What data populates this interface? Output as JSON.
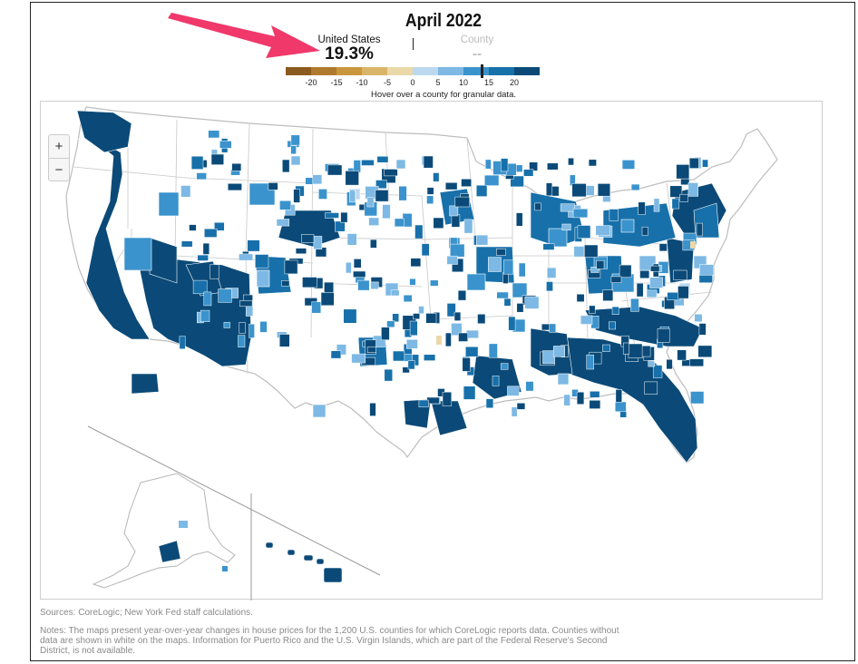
{
  "title": "April 2022",
  "national": {
    "label": "United States",
    "value": "19.3%",
    "value_num": 19.3
  },
  "county": {
    "label": "County",
    "value": "--"
  },
  "legend": {
    "ticks": [
      "-20",
      "-15",
      "-10",
      "-5",
      "0",
      "5",
      "10",
      "15",
      "20"
    ],
    "colors": [
      "#8c5a1e",
      "#b07a2e",
      "#c9963d",
      "#d9b56a",
      "#ead8a8",
      "#bcd8ef",
      "#7db9e4",
      "#3a93cc",
      "#1770aa",
      "#0b4a78"
    ],
    "range": [
      -25,
      25
    ]
  },
  "hover_note": "Hover over a county for granular data.",
  "zoom": {
    "in_label": "+",
    "out_label": "−"
  },
  "sources": "Sources: CoreLogic; New York Fed staff calculations.",
  "notes": "Notes: The maps present year-over-year changes in house prices for the 1,200 U.S. counties for which CoreLogic reports data. Counties without data are shown in white on the maps. Information for Puerto Rico and the U.S. Virgin Islands, which are part of the Federal Reserve's Second District, is not available.",
  "map_colors": {
    "dark": "#0b4a78",
    "mid": "#1770aa",
    "medium": "#3a93cc",
    "light": "#7db9e4",
    "pale": "#bcd8ef",
    "tan": "#ead8a8",
    "border": "#c8c8c8",
    "inset_line": "#999999"
  },
  "arrow_color": "#f0386b"
}
